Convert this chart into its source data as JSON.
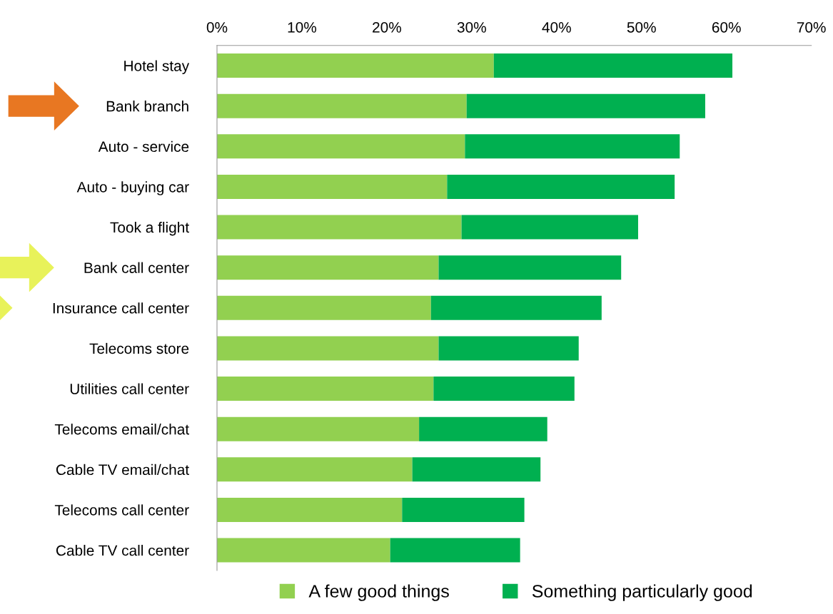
{
  "chart_data": {
    "type": "bar",
    "orientation": "horizontal",
    "stacked": true,
    "categories": [
      "Hotel stay",
      "Bank branch",
      "Auto - service",
      "Auto - buying car",
      "Took a flight",
      "Bank call center",
      "Insurance call center",
      "Telecoms store",
      "Utilities call center",
      "Telecoms email/chat",
      "Cable TV email/chat",
      "Telecoms call center",
      "Cable TV call center"
    ],
    "series": [
      {
        "name": "A few good things",
        "color": "#92d050",
        "values": [
          32.6,
          29.4,
          29.2,
          27.1,
          28.8,
          26.1,
          25.2,
          26.1,
          25.5,
          23.8,
          23.0,
          21.8,
          20.4
        ]
      },
      {
        "name": "Something particularly good",
        "color": "#00b050",
        "values": [
          28.1,
          28.1,
          25.3,
          26.8,
          20.8,
          21.5,
          20.1,
          16.5,
          16.6,
          15.1,
          15.1,
          14.4,
          15.3
        ]
      }
    ],
    "xlim": [
      0,
      70
    ],
    "xticks": [
      {
        "value": 0,
        "label": "0%"
      },
      {
        "value": 10,
        "label": "10%"
      },
      {
        "value": 20,
        "label": "20%"
      },
      {
        "value": 30,
        "label": "30%"
      },
      {
        "value": 40,
        "label": "40%"
      },
      {
        "value": 50,
        "label": "50%"
      },
      {
        "value": 60,
        "label": "60%"
      },
      {
        "value": 70,
        "label": "70%"
      }
    ],
    "legend": "bottom",
    "grid": false
  }
}
